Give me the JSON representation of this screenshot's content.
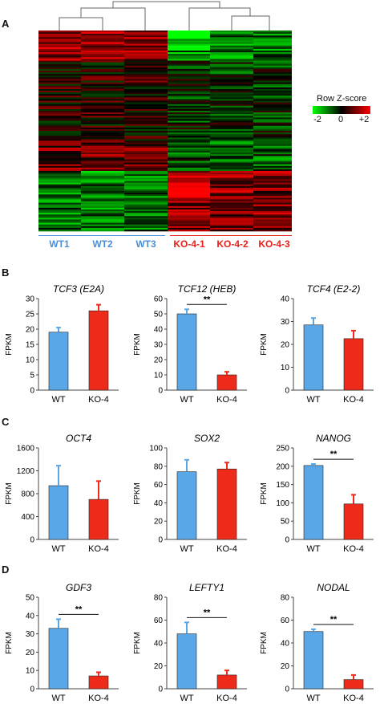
{
  "panels": {
    "a": "A",
    "b": "B",
    "c": "C",
    "d": "D"
  },
  "heatmap": {
    "samples": [
      "WT1",
      "WT2",
      "WT3",
      "KO-4-1",
      "KO-4-2",
      "KO-4-3"
    ],
    "sample_colors": [
      "#4a90d9",
      "#4a90d9",
      "#4a90d9",
      "#e8201a",
      "#e8201a",
      "#e8201a"
    ],
    "legend_title": "Row Z-score",
    "legend_ticks": [
      "-2",
      "0",
      "+2"
    ],
    "low_color": "#00ff00",
    "mid_color": "#000000",
    "high_color": "#ff0000"
  },
  "chart_data": [
    {
      "type": "bar",
      "title": "TCF3 (E2A)",
      "ylabel": "FPKM",
      "categories": [
        "WT",
        "KO-4"
      ],
      "values": [
        19,
        26
      ],
      "errors": [
        1.5,
        2
      ],
      "ylim": [
        0,
        30
      ],
      "yticks": [
        0,
        5,
        10,
        15,
        20,
        25,
        30
      ],
      "colors": [
        "#5aa7e8",
        "#ee2a1b"
      ],
      "significance": ""
    },
    {
      "type": "bar",
      "title": "TCF12 (HEB)",
      "ylabel": "FPKM",
      "categories": [
        "WT",
        "KO-4"
      ],
      "values": [
        50,
        10
      ],
      "errors": [
        3,
        2
      ],
      "ylim": [
        0,
        60
      ],
      "yticks": [
        0,
        10,
        20,
        30,
        40,
        50,
        60
      ],
      "colors": [
        "#5aa7e8",
        "#ee2a1b"
      ],
      "significance": "**"
    },
    {
      "type": "bar",
      "title": "TCF4 (E2-2)",
      "ylabel": "FPKM",
      "categories": [
        "WT",
        "KO-4"
      ],
      "values": [
        28.5,
        22.5
      ],
      "errors": [
        3,
        3.5
      ],
      "ylim": [
        0,
        40
      ],
      "yticks": [
        0,
        10,
        20,
        30,
        40
      ],
      "colors": [
        "#5aa7e8",
        "#ee2a1b"
      ],
      "significance": ""
    },
    {
      "type": "bar",
      "title": "OCT4",
      "ylabel": "FPKM",
      "categories": [
        "WT",
        "KO-4"
      ],
      "values": [
        940,
        700
      ],
      "errors": [
        350,
        320
      ],
      "ylim": [
        0,
        1600
      ],
      "yticks": [
        0,
        400,
        800,
        1200,
        1600
      ],
      "colors": [
        "#5aa7e8",
        "#ee2a1b"
      ],
      "significance": ""
    },
    {
      "type": "bar",
      "title": "SOX2",
      "ylabel": "FPKM",
      "categories": [
        "WT",
        "KO-4"
      ],
      "values": [
        74,
        77
      ],
      "errors": [
        13,
        7
      ],
      "ylim": [
        0,
        100
      ],
      "yticks": [
        0,
        20,
        40,
        60,
        80,
        100
      ],
      "colors": [
        "#5aa7e8",
        "#ee2a1b"
      ],
      "significance": ""
    },
    {
      "type": "bar",
      "title": "NANOG",
      "ylabel": "FPKM",
      "categories": [
        "WT",
        "KO-4"
      ],
      "values": [
        202,
        97
      ],
      "errors": [
        4,
        25
      ],
      "ylim": [
        0,
        250
      ],
      "yticks": [
        0,
        50,
        100,
        150,
        200,
        250
      ],
      "colors": [
        "#5aa7e8",
        "#ee2a1b"
      ],
      "significance": "**"
    },
    {
      "type": "bar",
      "title": "GDF3",
      "ylabel": "FPKM",
      "categories": [
        "WT",
        "KO-4"
      ],
      "values": [
        33,
        7
      ],
      "errors": [
        5,
        2
      ],
      "ylim": [
        0,
        50
      ],
      "yticks": [
        0,
        10,
        20,
        30,
        40,
        50
      ],
      "colors": [
        "#5aa7e8",
        "#ee2a1b"
      ],
      "significance": "**"
    },
    {
      "type": "bar",
      "title": "LEFTY1",
      "ylabel": "FPKM",
      "categories": [
        "WT",
        "KO-4"
      ],
      "values": [
        48,
        12
      ],
      "errors": [
        10,
        4
      ],
      "ylim": [
        0,
        80
      ],
      "yticks": [
        0,
        20,
        40,
        60,
        80
      ],
      "colors": [
        "#5aa7e8",
        "#ee2a1b"
      ],
      "significance": "**"
    },
    {
      "type": "bar",
      "title": "NODAL",
      "ylabel": "FPKM",
      "categories": [
        "WT",
        "KO-4"
      ],
      "values": [
        50,
        8
      ],
      "errors": [
        2,
        4
      ],
      "ylim": [
        0,
        80
      ],
      "yticks": [
        0,
        20,
        40,
        60,
        80
      ],
      "colors": [
        "#5aa7e8",
        "#ee2a1b"
      ],
      "significance": "**"
    }
  ]
}
